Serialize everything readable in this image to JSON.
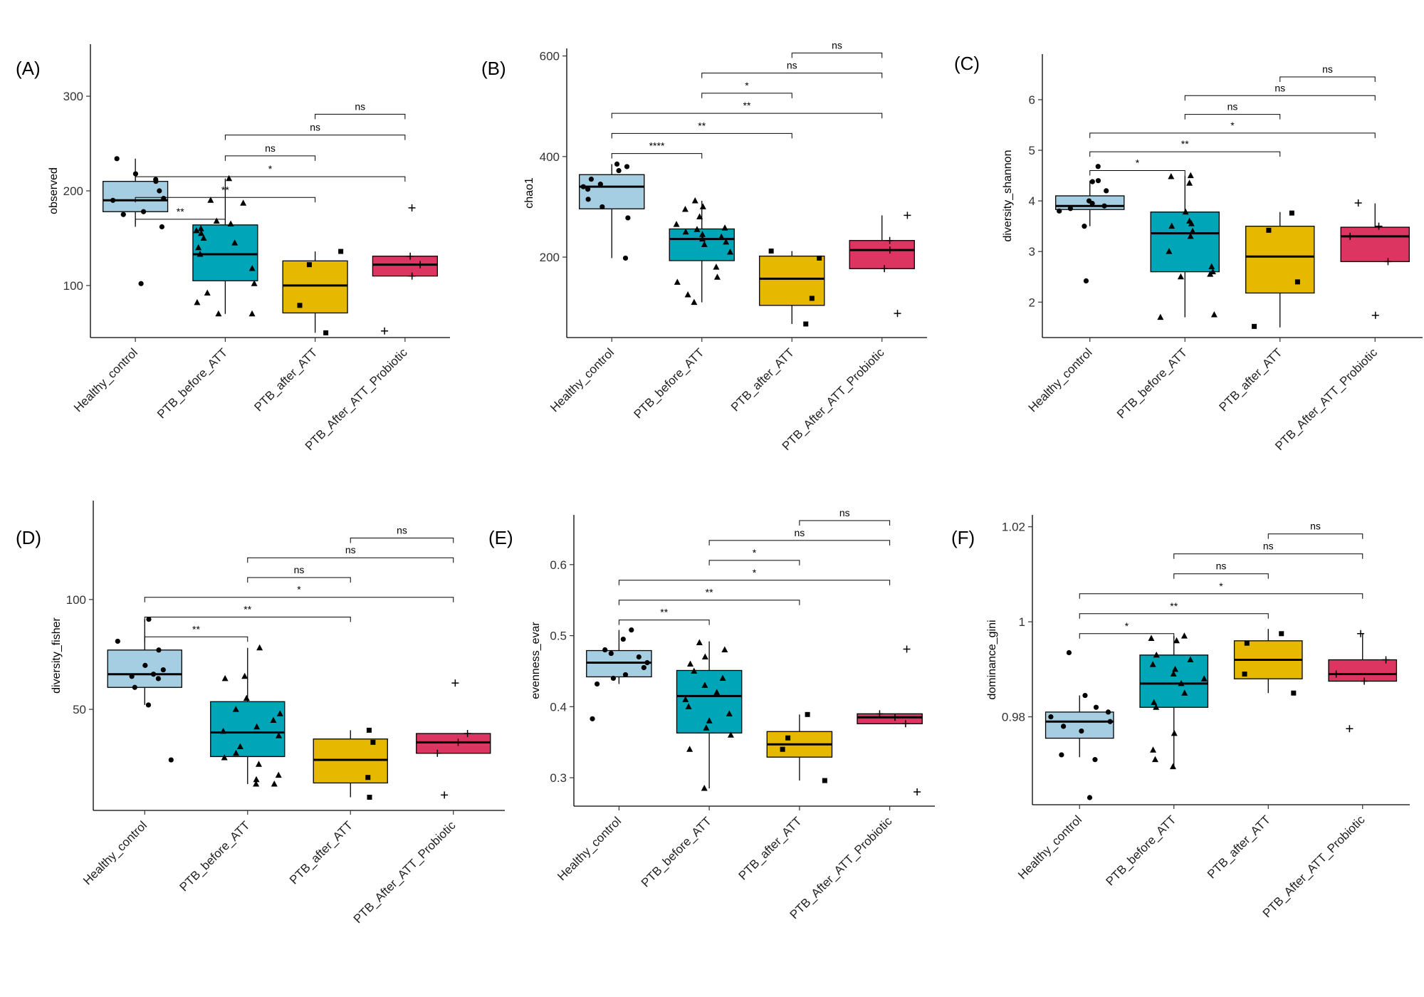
{
  "categories": [
    "Healthy_control",
    "PTB_before_ATT",
    "PTB_after_ATT",
    "PTB_After_ATT_Probiotic"
  ],
  "colors": {
    "Healthy_control": "#A6CEE3",
    "PTB_before_ATT": "#00A6B8",
    "PTB_after_ATT": "#E6B800",
    "PTB_After_ATT_Probiotic": "#DC3562"
  },
  "markers": {
    "Healthy_control": "circle",
    "PTB_before_ATT": "triangle",
    "PTB_after_ATT": "square",
    "PTB_After_ATT_Probiotic": "plus"
  },
  "chart_data": [
    {
      "type": "boxplot",
      "panel": "(A)",
      "ylabel": "observed",
      "ylim": [
        45,
        355
      ],
      "yticks": [
        100,
        200,
        300
      ],
      "boxes": [
        {
          "group": "Healthy_control",
          "q1": 178,
          "median": 190,
          "q3": 210,
          "whisker_low": 162,
          "whisker_high": 234
        },
        {
          "group": "PTB_before_ATT",
          "q1": 105,
          "median": 133,
          "q3": 164,
          "whisker_low": 70,
          "whisker_high": 213
        },
        {
          "group": "PTB_after_ATT",
          "q1": 71,
          "median": 100,
          "q3": 126,
          "whisker_low": 50,
          "whisker_high": 136
        },
        {
          "group": "PTB_After_ATT_Probiotic",
          "q1": 110,
          "median": 122,
          "q3": 131,
          "whisker_low": 110,
          "whisker_high": 131
        }
      ],
      "points": {
        "Healthy_control": [
          234,
          218,
          212,
          210,
          200,
          190,
          178,
          192,
          175,
          162,
          102
        ],
        "PTB_before_ATT": [
          213,
          190,
          187,
          168,
          165,
          160,
          158,
          155,
          150,
          145,
          140,
          133,
          118,
          102,
          92,
          82,
          70,
          70
        ],
        "PTB_after_ATT": [
          136,
          122,
          79,
          50
        ],
        "PTB_After_ATT_Probiotic": [
          182,
          131,
          122,
          110,
          52
        ]
      },
      "comparisons": [
        {
          "from": 0,
          "to": 1,
          "y": 170,
          "label": "**"
        },
        {
          "from": 0,
          "to": 2,
          "y": 193,
          "label": "**"
        },
        {
          "from": 0,
          "to": 3,
          "y": 215,
          "label": "*"
        },
        {
          "from": 1,
          "to": 2,
          "y": 237,
          "label": "ns"
        },
        {
          "from": 1,
          "to": 3,
          "y": 259,
          "label": "ns"
        },
        {
          "from": 2,
          "to": 3,
          "y": 281,
          "label": "ns"
        }
      ]
    },
    {
      "type": "boxplot",
      "panel": "(B)",
      "ylabel": "chao1",
      "ylim": [
        40,
        615
      ],
      "yticks": [
        200,
        400,
        600
      ],
      "boxes": [
        {
          "group": "Healthy_control",
          "q1": 296,
          "median": 340,
          "q3": 364,
          "whisker_low": 198,
          "whisker_high": 385
        },
        {
          "group": "PTB_before_ATT",
          "q1": 193,
          "median": 236,
          "q3": 256,
          "whisker_low": 110,
          "whisker_high": 312
        },
        {
          "group": "PTB_after_ATT",
          "q1": 104,
          "median": 157,
          "q3": 202,
          "whisker_low": 67,
          "whisker_high": 212
        },
        {
          "group": "PTB_After_ATT_Probiotic",
          "q1": 177,
          "median": 214,
          "q3": 233,
          "whisker_low": 177,
          "whisker_high": 283
        }
      ],
      "points": {
        "Healthy_control": [
          385,
          380,
          372,
          355,
          345,
          340,
          335,
          315,
          300,
          278,
          198
        ],
        "PTB_before_ATT": [
          312,
          300,
          295,
          280,
          265,
          258,
          255,
          250,
          245,
          240,
          236,
          230,
          225,
          210,
          180,
          160,
          150,
          125,
          110
        ],
        "PTB_after_ATT": [
          212,
          198,
          118,
          67
        ],
        "PTB_After_ATT_Probiotic": [
          283,
          233,
          214,
          177,
          88
        ]
      },
      "comparisons": [
        {
          "from": 0,
          "to": 1,
          "y": 406,
          "label": "****"
        },
        {
          "from": 0,
          "to": 2,
          "y": 446,
          "label": "**"
        },
        {
          "from": 0,
          "to": 3,
          "y": 486,
          "label": "**"
        },
        {
          "from": 1,
          "to": 2,
          "y": 526,
          "label": "*"
        },
        {
          "from": 1,
          "to": 3,
          "y": 566,
          "label": "ns"
        },
        {
          "from": 2,
          "to": 3,
          "y": 606,
          "label": "ns"
        }
      ]
    },
    {
      "type": "boxplot",
      "panel": "(C)",
      "ylabel": "diversity_shannon",
      "ylim": [
        1.3,
        6.9
      ],
      "yticks": [
        2,
        3,
        4,
        5,
        6
      ],
      "boxes": [
        {
          "group": "Healthy_control",
          "q1": 3.83,
          "median": 3.9,
          "q3": 4.1,
          "whisker_low": 3.5,
          "whisker_high": 4.4
        },
        {
          "group": "PTB_before_ATT",
          "q1": 2.6,
          "median": 3.36,
          "q3": 3.78,
          "whisker_low": 1.7,
          "whisker_high": 4.5
        },
        {
          "group": "PTB_after_ATT",
          "q1": 2.18,
          "median": 2.9,
          "q3": 3.5,
          "whisker_low": 1.5,
          "whisker_high": 3.78
        },
        {
          "group": "PTB_After_ATT_Probiotic",
          "q1": 2.8,
          "median": 3.3,
          "q3": 3.48,
          "whisker_low": 2.8,
          "whisker_high": 3.95
        }
      ],
      "points": {
        "Healthy_control": [
          4.68,
          4.4,
          4.38,
          4.2,
          4.0,
          3.95,
          3.9,
          3.85,
          3.8,
          3.5,
          2.42
        ],
        "PTB_before_ATT": [
          4.5,
          4.48,
          4.35,
          3.78,
          3.6,
          3.55,
          3.5,
          3.4,
          3.3,
          3.0,
          2.7,
          2.6,
          2.55,
          2.5,
          1.75,
          1.7
        ],
        "PTB_after_ATT": [
          3.76,
          3.42,
          2.4,
          1.52
        ],
        "PTB_After_ATT_Probiotic": [
          3.96,
          3.5,
          3.3,
          2.8,
          1.74
        ]
      },
      "comparisons": [
        {
          "from": 0,
          "to": 1,
          "y": 4.6,
          "label": "*"
        },
        {
          "from": 0,
          "to": 2,
          "y": 4.97,
          "label": "**"
        },
        {
          "from": 0,
          "to": 3,
          "y": 5.34,
          "label": "*"
        },
        {
          "from": 1,
          "to": 2,
          "y": 5.71,
          "label": "ns"
        },
        {
          "from": 1,
          "to": 3,
          "y": 6.08,
          "label": "ns"
        },
        {
          "from": 2,
          "to": 3,
          "y": 6.45,
          "label": "ns"
        }
      ]
    },
    {
      "type": "boxplot",
      "panel": "(D)",
      "ylabel": "diversity_fisher",
      "ylim": [
        4,
        145
      ],
      "yticks": [
        50,
        100
      ],
      "boxes": [
        {
          "group": "Healthy_control",
          "q1": 60,
          "median": 66,
          "q3": 77,
          "whisker_low": 52,
          "whisker_high": 91
        },
        {
          "group": "PTB_before_ATT",
          "q1": 28.5,
          "median": 39.5,
          "q3": 53.5,
          "whisker_low": 16,
          "whisker_high": 78
        },
        {
          "group": "PTB_after_ATT",
          "q1": 16.5,
          "median": 27,
          "q3": 36.5,
          "whisker_low": 10,
          "whisker_high": 40.5
        },
        {
          "group": "PTB_After_ATT_Probiotic",
          "q1": 30,
          "median": 35,
          "q3": 39,
          "whisker_low": 30,
          "whisker_high": 39
        }
      ],
      "points": {
        "Healthy_control": [
          91,
          81,
          77,
          70,
          68,
          66,
          65,
          64,
          60,
          52,
          27
        ],
        "PTB_before_ATT": [
          78,
          65,
          64,
          55,
          50,
          48,
          45,
          42,
          40,
          38,
          33,
          30,
          28,
          25,
          20,
          18,
          16,
          16
        ],
        "PTB_after_ATT": [
          40.5,
          35,
          19,
          10
        ],
        "PTB_After_ATT_Probiotic": [
          62,
          39,
          35,
          30,
          11
        ]
      },
      "comparisons": [
        {
          "from": 0,
          "to": 1,
          "y": 83,
          "label": "**"
        },
        {
          "from": 0,
          "to": 2,
          "y": 92,
          "label": "**"
        },
        {
          "from": 0,
          "to": 3,
          "y": 101,
          "label": "*"
        },
        {
          "from": 1,
          "to": 2,
          "y": 110,
          "label": "ns"
        },
        {
          "from": 1,
          "to": 3,
          "y": 119,
          "label": "ns"
        },
        {
          "from": 2,
          "to": 3,
          "y": 128,
          "label": "ns"
        }
      ]
    },
    {
      "type": "boxplot",
      "panel": "(E)",
      "ylabel": "evenness_evar",
      "ylim": [
        0.26,
        0.67
      ],
      "yticks": [
        0.3,
        0.4,
        0.5,
        0.6
      ],
      "boxes": [
        {
          "group": "Healthy_control",
          "q1": 0.442,
          "median": 0.462,
          "q3": 0.479,
          "whisker_low": 0.432,
          "whisker_high": 0.508
        },
        {
          "group": "PTB_before_ATT",
          "q1": 0.363,
          "median": 0.415,
          "q3": 0.451,
          "whisker_low": 0.285,
          "whisker_high": 0.492
        },
        {
          "group": "PTB_after_ATT",
          "q1": 0.329,
          "median": 0.347,
          "q3": 0.365,
          "whisker_low": 0.296,
          "whisker_high": 0.389
        },
        {
          "group": "PTB_After_ATT_Probiotic",
          "q1": 0.376,
          "median": 0.385,
          "q3": 0.39,
          "whisker_low": 0.376,
          "whisker_high": 0.39
        }
      ],
      "points": {
        "Healthy_control": [
          0.508,
          0.495,
          0.48,
          0.475,
          0.47,
          0.462,
          0.455,
          0.445,
          0.44,
          0.432,
          0.383
        ],
        "PTB_before_ATT": [
          0.49,
          0.48,
          0.47,
          0.46,
          0.45,
          0.44,
          0.43,
          0.42,
          0.41,
          0.4,
          0.39,
          0.38,
          0.37,
          0.36,
          0.34,
          0.285
        ],
        "PTB_after_ATT": [
          0.389,
          0.356,
          0.34,
          0.296
        ],
        "PTB_After_ATT_Probiotic": [
          0.481,
          0.39,
          0.385,
          0.376,
          0.28
        ]
      },
      "comparisons": [
        {
          "from": 0,
          "to": 1,
          "y": 0.522,
          "label": "**"
        },
        {
          "from": 0,
          "to": 2,
          "y": 0.55,
          "label": "**"
        },
        {
          "from": 0,
          "to": 3,
          "y": 0.578,
          "label": "*"
        },
        {
          "from": 1,
          "to": 2,
          "y": 0.606,
          "label": "*"
        },
        {
          "from": 1,
          "to": 3,
          "y": 0.634,
          "label": "ns"
        },
        {
          "from": 2,
          "to": 3,
          "y": 0.662,
          "label": "ns"
        }
      ]
    },
    {
      "type": "boxplot",
      "panel": "(F)",
      "ylabel": "dominance_gini",
      "ylim": [
        0.9615,
        1.0225
      ],
      "yticks": [
        0.98,
        1.0,
        1.02
      ],
      "boxes": [
        {
          "group": "Healthy_control",
          "q1": 0.9755,
          "median": 0.979,
          "q3": 0.981,
          "whisker_low": 0.9715,
          "whisker_high": 0.9845
        },
        {
          "group": "PTB_before_ATT",
          "q1": 0.982,
          "median": 0.987,
          "q3": 0.993,
          "whisker_low": 0.9695,
          "whisker_high": 0.997
        },
        {
          "group": "PTB_after_ATT",
          "q1": 0.988,
          "median": 0.992,
          "q3": 0.996,
          "whisker_low": 0.985,
          "whisker_high": 0.9985
        },
        {
          "group": "PTB_After_ATT_Probiotic",
          "q1": 0.9875,
          "median": 0.989,
          "q3": 0.992,
          "whisker_low": 0.9875,
          "whisker_high": 0.9975
        }
      ],
      "points": {
        "Healthy_control": [
          0.9935,
          0.9845,
          0.982,
          0.981,
          0.98,
          0.979,
          0.978,
          0.977,
          0.972,
          0.971,
          0.963
        ],
        "PTB_before_ATT": [
          0.997,
          0.9965,
          0.996,
          0.993,
          0.992,
          0.991,
          0.99,
          0.989,
          0.988,
          0.987,
          0.985,
          0.983,
          0.982,
          0.9765,
          0.973,
          0.971,
          0.9695
        ],
        "PTB_after_ATT": [
          0.9975,
          0.9955,
          0.989,
          0.985
        ],
        "PTB_After_ATT_Probiotic": [
          0.9975,
          0.992,
          0.989,
          0.9875,
          0.9775
        ]
      },
      "comparisons": [
        {
          "from": 0,
          "to": 1,
          "y": 0.9975,
          "label": "*"
        },
        {
          "from": 0,
          "to": 2,
          "y": 1.0017,
          "label": "**"
        },
        {
          "from": 0,
          "to": 3,
          "y": 1.0059,
          "label": "*"
        },
        {
          "from": 1,
          "to": 2,
          "y": 1.0101,
          "label": "ns"
        },
        {
          "from": 1,
          "to": 3,
          "y": 1.0143,
          "label": "ns"
        },
        {
          "from": 2,
          "to": 3,
          "y": 1.0185,
          "label": "ns"
        }
      ]
    }
  ]
}
